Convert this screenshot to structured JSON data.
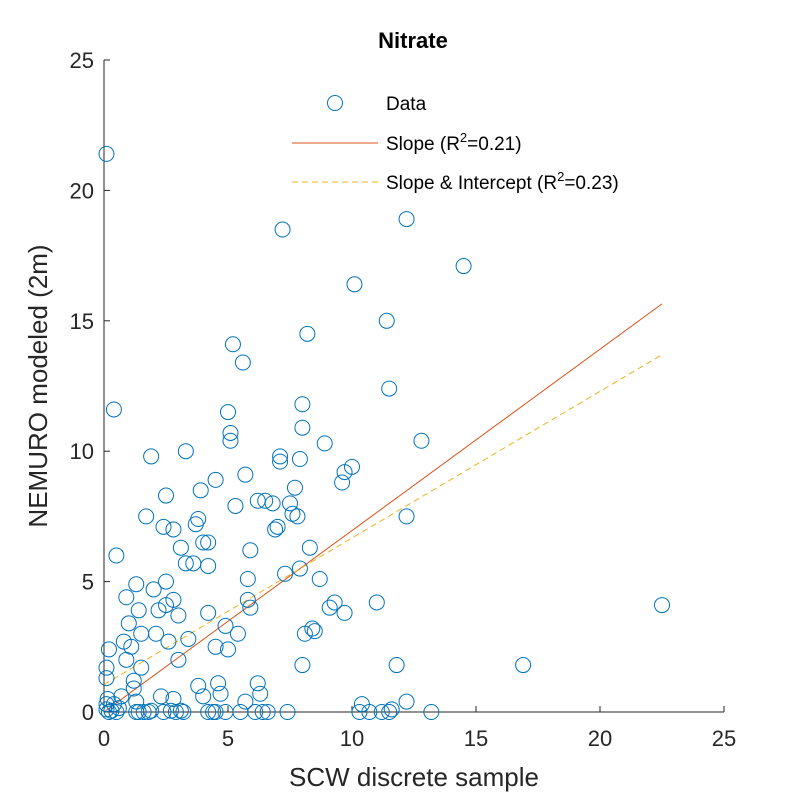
{
  "chart_data": {
    "type": "scatter",
    "title": "Nitrate",
    "xlabel": "SCW discrete sample",
    "ylabel": "NEMURO modeled (2m)",
    "xlim": [
      0,
      25
    ],
    "ylim": [
      0,
      25
    ],
    "xticks": [
      0,
      5,
      10,
      15,
      20,
      25
    ],
    "yticks": [
      0,
      5,
      10,
      15,
      20,
      25
    ],
    "grid": false,
    "legend_position": "top-right",
    "series": [
      {
        "name": "Data",
        "kind": "markers",
        "marker": "circle",
        "color": "#0072BD",
        "points": [
          [
            0.1,
            21.4
          ],
          [
            0.4,
            11.6
          ],
          [
            0.5,
            6.0
          ],
          [
            0.2,
            2.4
          ],
          [
            0.1,
            1.7
          ],
          [
            0.1,
            1.3
          ],
          [
            0.15,
            0.5
          ],
          [
            0.1,
            0.3
          ],
          [
            0.1,
            0.1
          ],
          [
            0.2,
            0.0
          ],
          [
            0.3,
            0.05
          ],
          [
            0.4,
            0.3
          ],
          [
            0.5,
            0.0
          ],
          [
            0.6,
            0.15
          ],
          [
            0.7,
            0.6
          ],
          [
            0.8,
            2.7
          ],
          [
            0.9,
            2.0
          ],
          [
            0.9,
            4.4
          ],
          [
            1.0,
            3.4
          ],
          [
            1.1,
            2.5
          ],
          [
            1.2,
            1.2
          ],
          [
            1.2,
            0.9
          ],
          [
            1.3,
            0.4
          ],
          [
            1.3,
            0.0
          ],
          [
            1.4,
            0.0
          ],
          [
            1.3,
            4.9
          ],
          [
            1.4,
            3.9
          ],
          [
            1.5,
            3.0
          ],
          [
            1.5,
            1.7
          ],
          [
            1.6,
            0.0
          ],
          [
            1.7,
            7.5
          ],
          [
            1.8,
            0.0
          ],
          [
            1.9,
            0.05
          ],
          [
            1.9,
            9.8
          ],
          [
            2.0,
            4.7
          ],
          [
            2.1,
            3.0
          ],
          [
            2.2,
            3.9
          ],
          [
            2.3,
            0.6
          ],
          [
            2.4,
            7.1
          ],
          [
            2.4,
            0.0
          ],
          [
            2.5,
            8.3
          ],
          [
            2.5,
            5.0
          ],
          [
            2.5,
            4.1
          ],
          [
            2.6,
            2.7
          ],
          [
            2.7,
            0.05
          ],
          [
            2.8,
            7.0
          ],
          [
            2.8,
            4.3
          ],
          [
            2.8,
            0.5
          ],
          [
            2.9,
            0.0
          ],
          [
            3.0,
            3.7
          ],
          [
            3.0,
            2.0
          ],
          [
            3.1,
            0.05
          ],
          [
            3.1,
            6.3
          ],
          [
            3.2,
            0.0
          ],
          [
            3.3,
            10.0
          ],
          [
            3.3,
            5.7
          ],
          [
            3.4,
            2.8
          ],
          [
            3.6,
            5.7
          ],
          [
            3.7,
            7.2
          ],
          [
            3.8,
            7.4
          ],
          [
            3.8,
            1.0
          ],
          [
            3.9,
            8.5
          ],
          [
            4.0,
            6.5
          ],
          [
            4.0,
            0.6
          ],
          [
            4.2,
            6.5
          ],
          [
            4.2,
            0.0
          ],
          [
            4.2,
            5.6
          ],
          [
            4.2,
            3.8
          ],
          [
            4.4,
            0.0
          ],
          [
            4.5,
            8.9
          ],
          [
            4.5,
            2.5
          ],
          [
            4.5,
            0.0
          ],
          [
            4.6,
            1.1
          ],
          [
            4.7,
            0.7
          ],
          [
            4.9,
            0.0
          ],
          [
            4.9,
            3.3
          ],
          [
            5.0,
            2.4
          ],
          [
            5.0,
            11.5
          ],
          [
            5.1,
            10.7
          ],
          [
            5.1,
            10.4
          ],
          [
            5.2,
            14.1
          ],
          [
            5.3,
            7.9
          ],
          [
            5.4,
            3.0
          ],
          [
            5.5,
            0.0
          ],
          [
            5.6,
            13.4
          ],
          [
            5.7,
            9.1
          ],
          [
            5.7,
            0.4
          ],
          [
            5.8,
            5.1
          ],
          [
            5.8,
            4.3
          ],
          [
            5.9,
            6.2
          ],
          [
            5.9,
            4.0
          ],
          [
            6.1,
            0.0
          ],
          [
            6.2,
            8.1
          ],
          [
            6.2,
            1.1
          ],
          [
            6.3,
            0.7
          ],
          [
            6.4,
            0.0
          ],
          [
            6.5,
            8.1
          ],
          [
            6.6,
            0.0
          ],
          [
            6.8,
            8.0
          ],
          [
            6.9,
            7.0
          ],
          [
            7.0,
            7.1
          ],
          [
            7.1,
            9.8
          ],
          [
            7.1,
            9.6
          ],
          [
            7.2,
            18.5
          ],
          [
            7.3,
            5.3
          ],
          [
            7.4,
            0.0
          ],
          [
            7.5,
            8.0
          ],
          [
            7.6,
            7.6
          ],
          [
            7.7,
            8.6
          ],
          [
            7.8,
            7.5
          ],
          [
            8.0,
            11.8
          ],
          [
            8.0,
            10.9
          ],
          [
            7.9,
            9.7
          ],
          [
            7.9,
            5.5
          ],
          [
            8.0,
            1.8
          ],
          [
            8.1,
            3.0
          ],
          [
            8.2,
            14.5
          ],
          [
            8.3,
            6.3
          ],
          [
            8.4,
            3.2
          ],
          [
            8.5,
            3.1
          ],
          [
            8.7,
            5.1
          ],
          [
            8.9,
            10.3
          ],
          [
            9.1,
            4.0
          ],
          [
            9.3,
            4.2
          ],
          [
            9.6,
            8.8
          ],
          [
            9.7,
            9.2
          ],
          [
            9.7,
            3.8
          ],
          [
            10.0,
            9.4
          ],
          [
            10.1,
            16.4
          ],
          [
            10.3,
            0.0
          ],
          [
            10.4,
            0.3
          ],
          [
            10.7,
            0.0
          ],
          [
            11.0,
            4.2
          ],
          [
            11.2,
            0.0
          ],
          [
            11.4,
            15.0
          ],
          [
            11.5,
            0.0
          ],
          [
            11.6,
            0.1
          ],
          [
            11.5,
            12.4
          ],
          [
            11.8,
            1.8
          ],
          [
            12.2,
            18.9
          ],
          [
            12.2,
            7.5
          ],
          [
            12.2,
            0.4
          ],
          [
            12.8,
            10.4
          ],
          [
            13.2,
            0.0
          ],
          [
            14.5,
            17.1
          ],
          [
            16.9,
            1.8
          ],
          [
            22.5,
            4.1
          ]
        ]
      },
      {
        "name": "Slope (R²=0.21)",
        "kind": "line",
        "dash": "solid",
        "color": "#D95319",
        "x": [
          0,
          22.5
        ],
        "y": [
          0,
          15.65
        ]
      },
      {
        "name": "Slope & Intercept (R²=0.23)",
        "kind": "line",
        "dash": "dashed",
        "color": "#EDB120",
        "x": [
          0,
          22.5
        ],
        "y": [
          1.05,
          13.7
        ]
      }
    ],
    "legend": {
      "entries": [
        {
          "base": "Data",
          "sup": "",
          "suffix": ""
        },
        {
          "base": "Slope (R",
          "sup": "2",
          "suffix": "=0.21)"
        },
        {
          "base": "Slope & Intercept (R",
          "sup": "2",
          "suffix": "=0.23)"
        }
      ]
    }
  }
}
